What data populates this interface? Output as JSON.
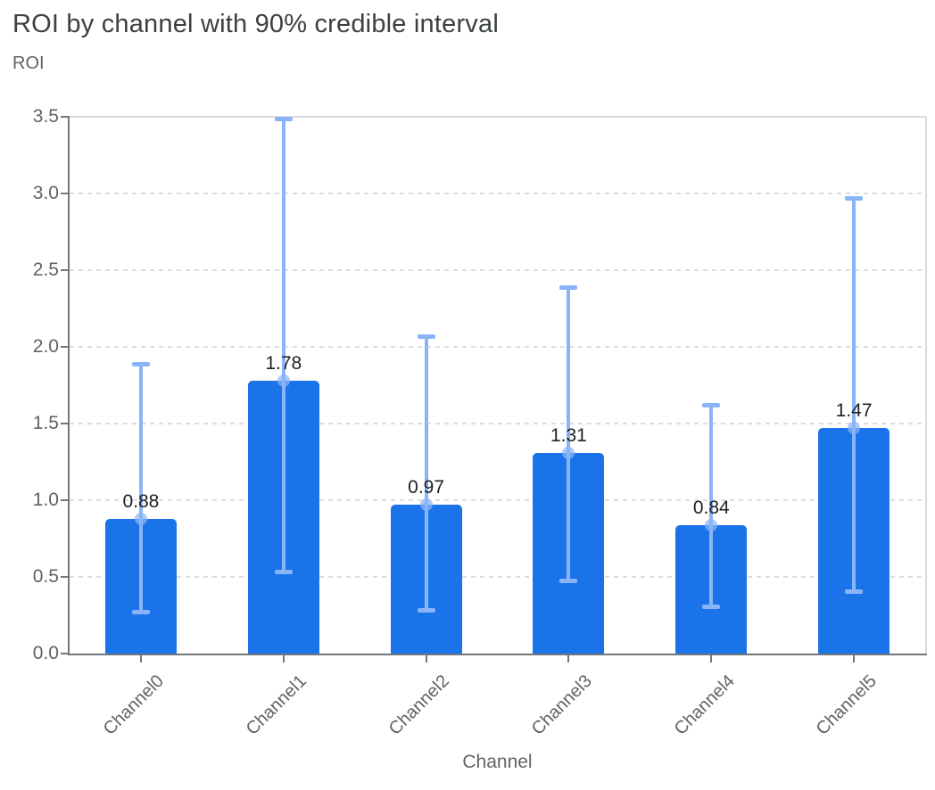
{
  "header": {
    "title": "ROI by channel with 90% credible interval",
    "y_axis_title": "ROI"
  },
  "chart_data": {
    "type": "bar",
    "title": "ROI by channel with 90% credible interval",
    "xlabel": "Channel",
    "ylabel": "ROI",
    "categories": [
      "Channel0",
      "Channel1",
      "Channel2",
      "Channel3",
      "Channel4",
      "Channel5"
    ],
    "values": [
      0.88,
      1.78,
      0.97,
      1.31,
      0.84,
      1.47
    ],
    "value_labels": [
      "0.88",
      "1.78",
      "0.97",
      "1.31",
      "0.84",
      "1.47"
    ],
    "error_bars": {
      "label": "90% credible interval",
      "low": [
        0.27,
        0.53,
        0.28,
        0.47,
        0.3,
        0.4
      ],
      "high": [
        1.89,
        3.49,
        2.07,
        2.39,
        1.62,
        2.97
      ]
    },
    "y_ticks": [
      0.0,
      0.5,
      1.0,
      1.5,
      2.0,
      2.5,
      3.0,
      3.5
    ],
    "y_tick_labels": [
      "0.0",
      "0.5",
      "1.0",
      "1.5",
      "2.0",
      "2.5",
      "3.0",
      "3.5"
    ],
    "ylim": [
      0,
      3.5
    ],
    "grid": "horizontal-dashed",
    "legend": "none",
    "colors": {
      "bar": "#1a73e8",
      "error_bar": "#8ab4f8",
      "mean_dot": "rgba(138,180,248,0.72)",
      "gridline": "#dadce0",
      "axis_line": "#73777b",
      "title_text": "#3c4043",
      "axis_text": "#5f6368",
      "value_label_text": "#202124"
    }
  }
}
